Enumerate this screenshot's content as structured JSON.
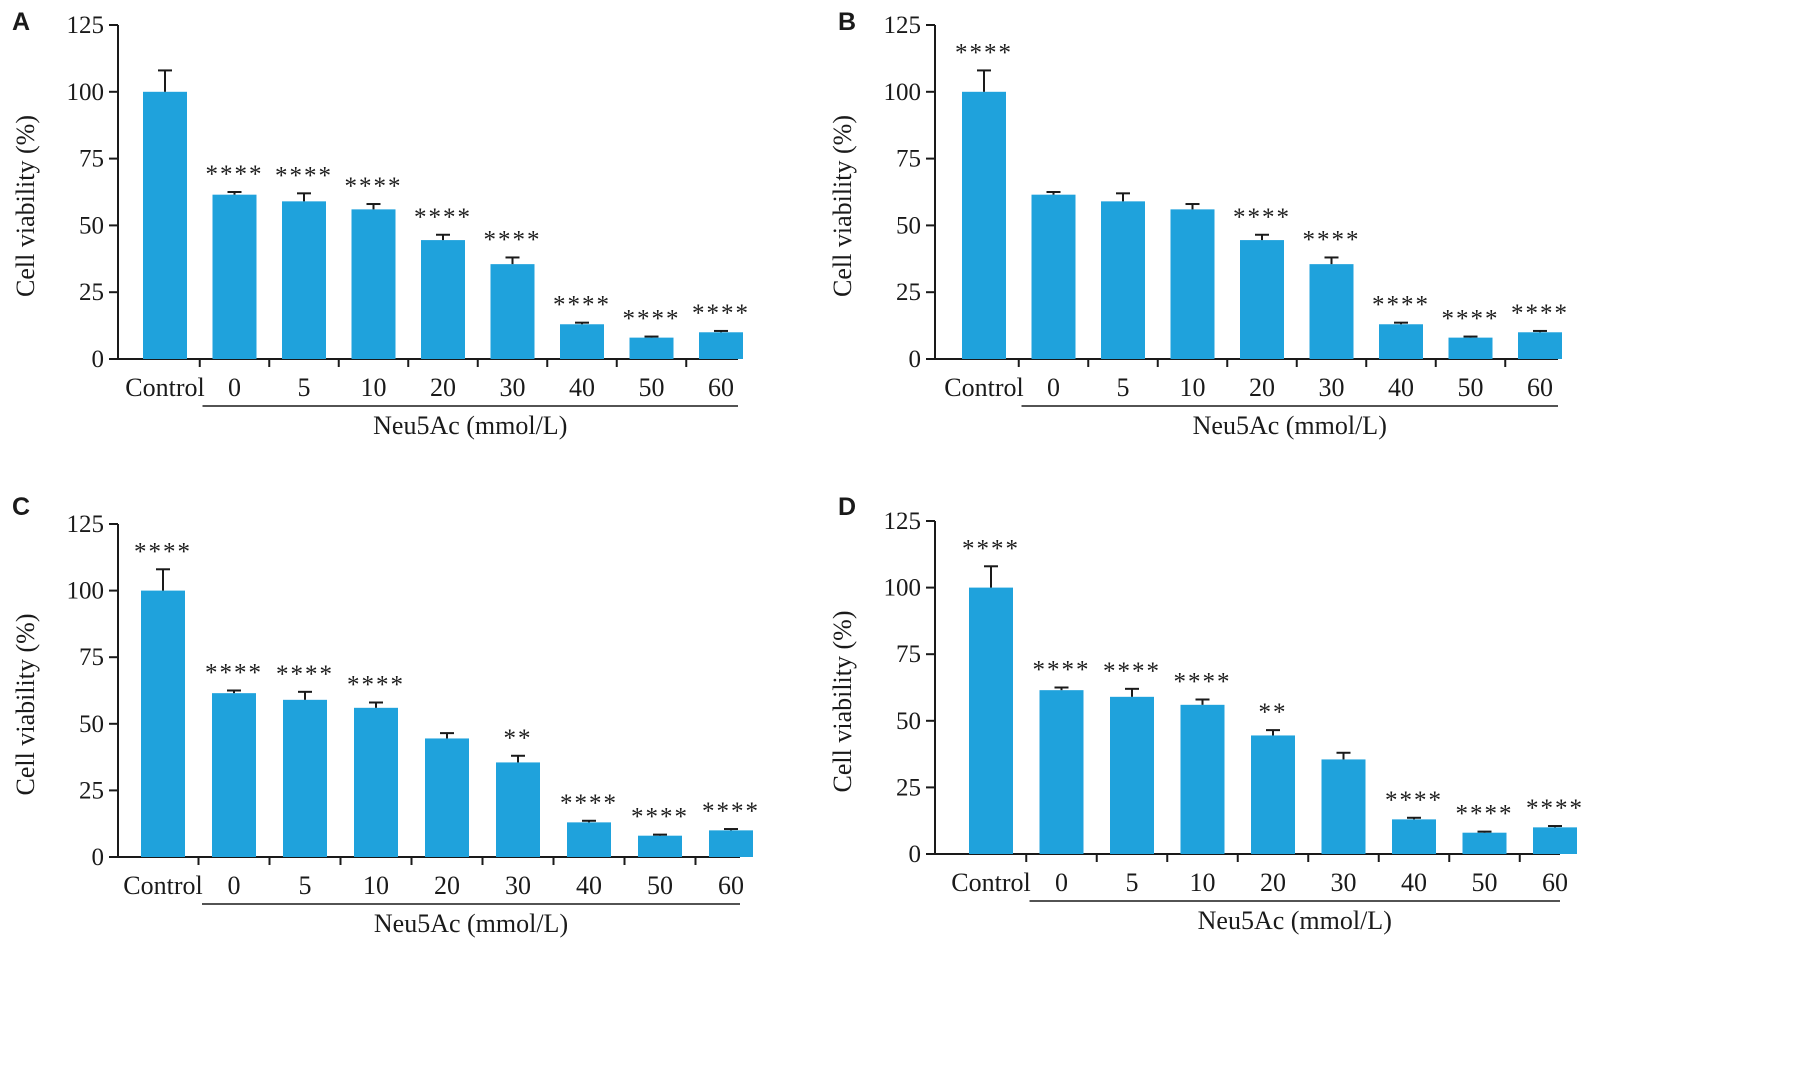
{
  "colors": {
    "bar": "#1fa2dc",
    "axis": "#1a1a1a",
    "text": "#1a1a1a",
    "background": "#ffffff"
  },
  "chart_data": [
    {
      "panel_label": "A",
      "type": "bar",
      "categories": [
        "Control",
        "0",
        "5",
        "10",
        "20",
        "30",
        "40",
        "50",
        "60"
      ],
      "values": [
        100,
        61.5,
        59,
        56,
        44.5,
        35.5,
        13,
        8,
        10
      ],
      "error": [
        8,
        1,
        3,
        2,
        2,
        2.5,
        0.6,
        0.4,
        0.5
      ],
      "significance": [
        "",
        "****",
        "****",
        "****",
        "****",
        "****",
        "****",
        "****",
        "****"
      ],
      "group_label": "Neu5Ac (mmol/L)",
      "ylabel": "Cell viability (%)",
      "yticks": [
        0,
        25,
        50,
        75,
        100,
        125
      ],
      "ylim": [
        0,
        125
      ]
    },
    {
      "panel_label": "B",
      "type": "bar",
      "categories": [
        "Control",
        "0",
        "5",
        "10",
        "20",
        "30",
        "40",
        "50",
        "60"
      ],
      "values": [
        100,
        61.5,
        59,
        56,
        44.5,
        35.5,
        13,
        8,
        10
      ],
      "error": [
        8,
        1,
        3,
        2,
        2,
        2.5,
        0.6,
        0.4,
        0.5
      ],
      "significance": [
        "****",
        "",
        "",
        "",
        "****",
        "****",
        "****",
        "****",
        "****"
      ],
      "group_label": "Neu5Ac (mmol/L)",
      "ylabel": "Cell viability (%)",
      "yticks": [
        0,
        25,
        50,
        75,
        100,
        125
      ],
      "ylim": [
        0,
        125
      ]
    },
    {
      "panel_label": "C",
      "type": "bar",
      "categories": [
        "Control",
        "0",
        "5",
        "10",
        "20",
        "30",
        "40",
        "50",
        "60"
      ],
      "values": [
        100,
        61.5,
        59,
        56,
        44.5,
        35.5,
        13,
        8,
        10
      ],
      "error": [
        8,
        1,
        3,
        2,
        2,
        2.5,
        0.6,
        0.4,
        0.5
      ],
      "significance": [
        "****",
        "****",
        "****",
        "****",
        "",
        "**",
        "****",
        "****",
        "****"
      ],
      "group_label": "Neu5Ac (mmol/L)",
      "ylabel": "Cell viability (%)",
      "yticks": [
        0,
        25,
        50,
        75,
        100,
        125
      ],
      "ylim": [
        0,
        125
      ]
    },
    {
      "panel_label": "D",
      "type": "bar",
      "categories": [
        "Control",
        "0",
        "5",
        "10",
        "20",
        "30",
        "40",
        "50",
        "60"
      ],
      "values": [
        100,
        61.5,
        59,
        56,
        44.5,
        35.5,
        13,
        8,
        10
      ],
      "error": [
        8,
        1,
        3,
        2,
        2,
        2.5,
        0.6,
        0.4,
        0.5
      ],
      "significance": [
        "****",
        "****",
        "****",
        "****",
        "**",
        "",
        "****",
        "****",
        "****"
      ],
      "group_label": "Neu5Ac (mmol/L)",
      "ylabel": "Cell viability (%)",
      "yticks": [
        0,
        25,
        50,
        75,
        100,
        125
      ],
      "ylim": [
        0,
        125
      ]
    }
  ]
}
